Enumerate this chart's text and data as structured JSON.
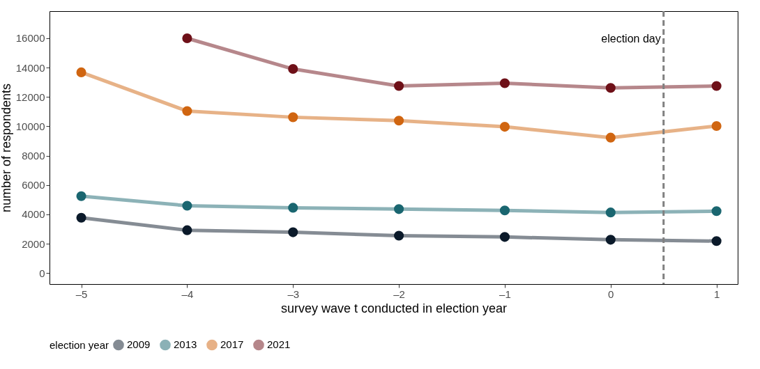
{
  "chart_data": {
    "type": "line",
    "xlabel": "survey wave t conducted in election year",
    "ylabel": "number of respondents",
    "legend_title": "election year",
    "x": [
      -5,
      -4,
      -3,
      -2,
      -1,
      0,
      1
    ],
    "series": [
      {
        "name": "2009",
        "color": "#0b1a2a",
        "values": [
          3770,
          2920,
          2780,
          2550,
          2460,
          2270,
          2180
        ]
      },
      {
        "name": "2013",
        "color": "#1a6670",
        "values": [
          5240,
          4590,
          4450,
          4360,
          4270,
          4130,
          4220
        ]
      },
      {
        "name": "2017",
        "color": "#d06510",
        "values": [
          13680,
          11040,
          10620,
          10390,
          9970,
          9230,
          10020
        ]
      },
      {
        "name": "2021",
        "color": "#6e1018",
        "values": [
          null,
          16000,
          13910,
          12750,
          12940,
          12620,
          12750
        ]
      }
    ],
    "xlim": [
      -5.3,
      1.2
    ],
    "xticks": [
      {
        "value": -5,
        "label": "–5"
      },
      {
        "value": -4,
        "label": "–4"
      },
      {
        "value": -3,
        "label": "–3"
      },
      {
        "value": -2,
        "label": "–2"
      },
      {
        "value": -1,
        "label": "–1"
      },
      0,
      1
    ],
    "ylim": [
      -750,
      17850
    ],
    "yticks": [
      0,
      2000,
      4000,
      6000,
      8000,
      10000,
      12000,
      14000,
      16000
    ],
    "ref_lines": [
      {
        "axis": "x",
        "value": 0.5,
        "label": "election day",
        "color": "#808080",
        "line_style": "dashed"
      }
    ],
    "grid": false,
    "legend": "bottom",
    "marker": "circle",
    "line_style": "solid"
  }
}
